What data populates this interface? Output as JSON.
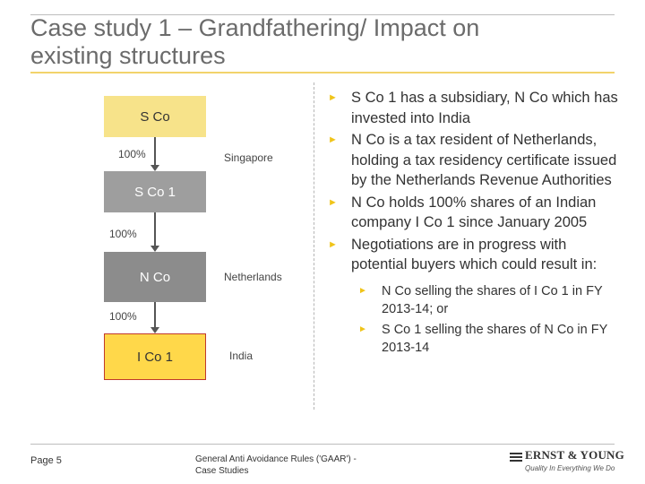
{
  "slide": {
    "title_line1": "Case study 1 – Grandfathering/ Impact on",
    "title_line2": "existing structures"
  },
  "diagram": {
    "entities": [
      {
        "label": "S Co"
      },
      {
        "label": "S Co 1"
      },
      {
        "label": "N Co"
      },
      {
        "label": "I Co 1"
      }
    ],
    "shareholdings": [
      "100%",
      "100%",
      "100%"
    ],
    "countries": [
      "Singapore",
      "Netherlands",
      "India"
    ]
  },
  "bullets": [
    {
      "text": "S Co 1 has a subsidiary, N Co which has invested into India"
    },
    {
      "text": "N Co is a tax resident of Netherlands, holding a tax residency certificate issued by the Netherlands Revenue Authorities"
    },
    {
      "text": "N Co holds 100% shares of an Indian company I Co 1 since January 2005"
    },
    {
      "text": "Negotiations are in progress with potential buyers which could result in:"
    }
  ],
  "sub_bullets": [
    {
      "text": "N Co selling the shares of I Co 1 in FY 2013-14; or"
    },
    {
      "text": "S Co 1 selling the shares of N Co in FY 2013-14"
    }
  ],
  "bullet_marker": "►",
  "footer": {
    "page": "Page 5",
    "text_line1": "General Anti Avoidance Rules ('GAAR') -",
    "text_line2": "Case Studies",
    "logo_name": "ERNST & YOUNG",
    "logo_tagline": "Quality In Everything We Do"
  },
  "colors": {
    "accent_yellow": "#f0c419",
    "box_yellow": "#f7e38a",
    "box_gold": "#ffd84a",
    "box_grey": "#9e9e9e"
  }
}
